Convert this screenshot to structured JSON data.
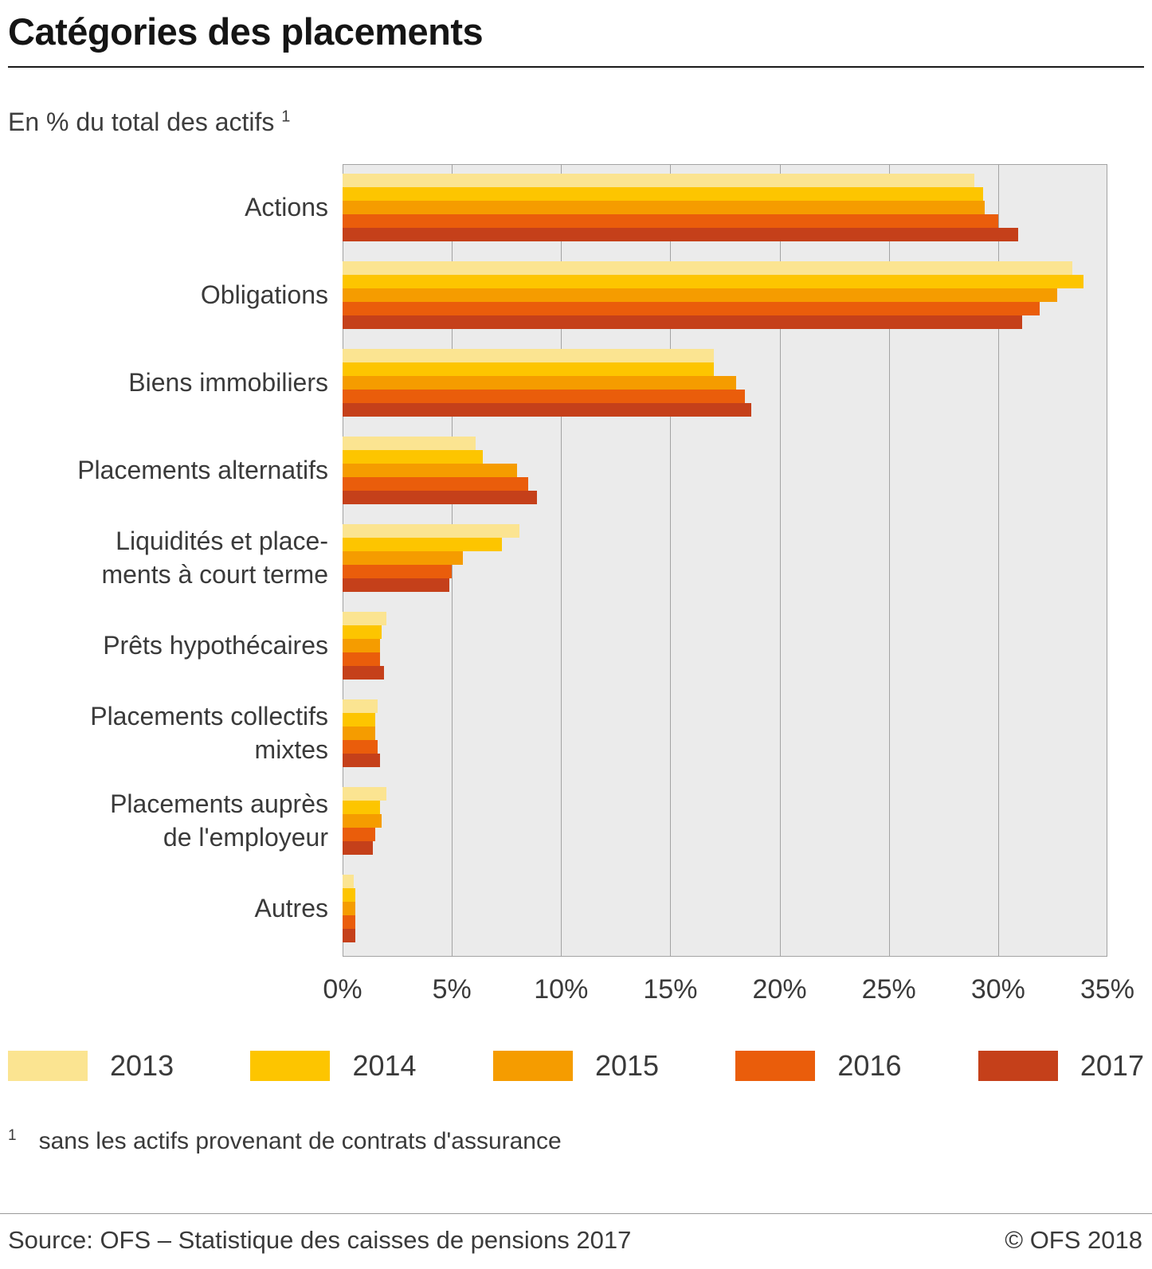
{
  "header": {
    "title": "Catégories des placements",
    "subtitle": "En % du total des actifs",
    "footnote_marker": "1"
  },
  "chart_data": {
    "type": "bar",
    "orientation": "horizontal",
    "title": "Catégories des placements",
    "subtitle": "En % du total des actifs",
    "unit": "%",
    "xlim": [
      0,
      35
    ],
    "x_ticks": [
      "0%",
      "5%",
      "10%",
      "15%",
      "20%",
      "25%",
      "30%",
      "35%"
    ],
    "grid": "vertical",
    "legend_position": "bottom",
    "plot_background": "#ebebeb",
    "gridline_color": "#a3a3a3",
    "categories": [
      "Actions",
      "Obligations",
      "Biens immobiliers",
      "Placements alternatifs",
      "Liquidités et place-\nments à court terme",
      "Prêts hypothécaires",
      "Placements collectifs\nmixtes",
      "Placements auprès\nde l'employeur",
      "Autres"
    ],
    "series": [
      {
        "name": "2013",
        "color": "#FBE491",
        "values": [
          28.9,
          33.4,
          17.0,
          6.1,
          8.1,
          2.0,
          1.6,
          2.0,
          0.5
        ]
      },
      {
        "name": "2014",
        "color": "#FDC500",
        "values": [
          29.3,
          33.9,
          17.0,
          6.4,
          7.3,
          1.8,
          1.5,
          1.7,
          0.6
        ]
      },
      {
        "name": "2015",
        "color": "#F59C00",
        "values": [
          29.4,
          32.7,
          18.0,
          8.0,
          5.5,
          1.7,
          1.5,
          1.8,
          0.6
        ]
      },
      {
        "name": "2016",
        "color": "#EA5D0B",
        "values": [
          30.0,
          31.9,
          18.4,
          8.5,
          5.0,
          1.7,
          1.6,
          1.5,
          0.6
        ]
      },
      {
        "name": "2017",
        "color": "#C5401A",
        "values": [
          30.9,
          31.1,
          18.7,
          8.9,
          4.9,
          1.9,
          1.7,
          1.4,
          0.6
        ]
      }
    ]
  },
  "footnote": {
    "marker": "1",
    "text": "sans les actifs provenant de contrats d'assurance"
  },
  "footer": {
    "source": "Source: OFS – Statistique des caisses de pensions 2017",
    "copyright": "© OFS 2018"
  }
}
